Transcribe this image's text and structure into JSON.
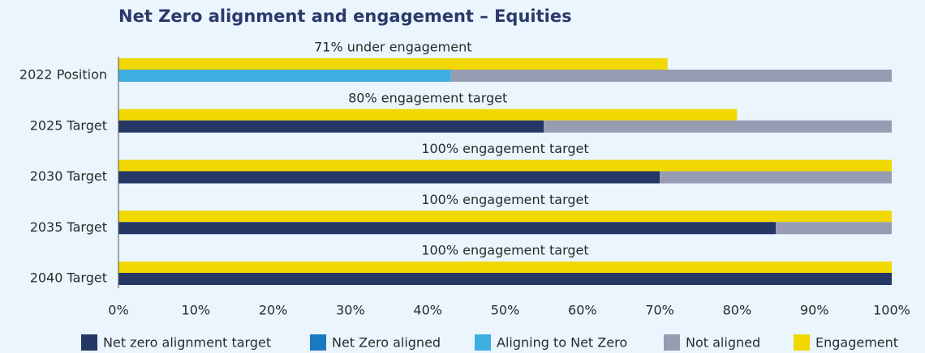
{
  "chart_data": {
    "type": "bar",
    "orientation": "horizontal",
    "title": "Net Zero alignment and engagement – Equities",
    "categories": [
      "2022 Position",
      "2025 Target",
      "2030 Target",
      "2035 Target",
      "2040 Target"
    ],
    "annotations": [
      "71% under engagement",
      "80% engagement target",
      "100% engagement target",
      "100% engagement target",
      "100% engagement target"
    ],
    "series": [
      {
        "name": "Net zero alignment target",
        "color": "#253765",
        "values": [
          0,
          55,
          70,
          85,
          100
        ]
      },
      {
        "name": "Net Zero aligned",
        "color": "#1a7abf",
        "values": [
          0,
          0,
          0,
          0,
          0
        ]
      },
      {
        "name": "Aligning to Net Zero",
        "color": "#3eaee0",
        "values": [
          43,
          0,
          0,
          0,
          0
        ]
      },
      {
        "name": "Not aligned",
        "color": "#979cb3",
        "values": [
          57,
          45,
          30,
          15,
          0
        ]
      },
      {
        "name": "Engagement",
        "color": "#f0d800",
        "values": [
          71,
          80,
          100,
          100,
          100
        ]
      }
    ],
    "xlim": [
      0,
      100
    ],
    "xticks": [
      {
        "value": 0,
        "label": "0%"
      },
      {
        "value": 10,
        "label": "10%"
      },
      {
        "value": 20,
        "label": "20%"
      },
      {
        "value": 30,
        "label": "30%"
      },
      {
        "value": 40,
        "label": "40%"
      },
      {
        "value": 50,
        "label": "50%"
      },
      {
        "value": 60,
        "label": "60%"
      },
      {
        "value": 70,
        "label": "70%"
      },
      {
        "value": 80,
        "label": "80%"
      },
      {
        "value": 90,
        "label": "90%"
      },
      {
        "value": 100,
        "label": "100%"
      }
    ],
    "legend": "bottom"
  }
}
